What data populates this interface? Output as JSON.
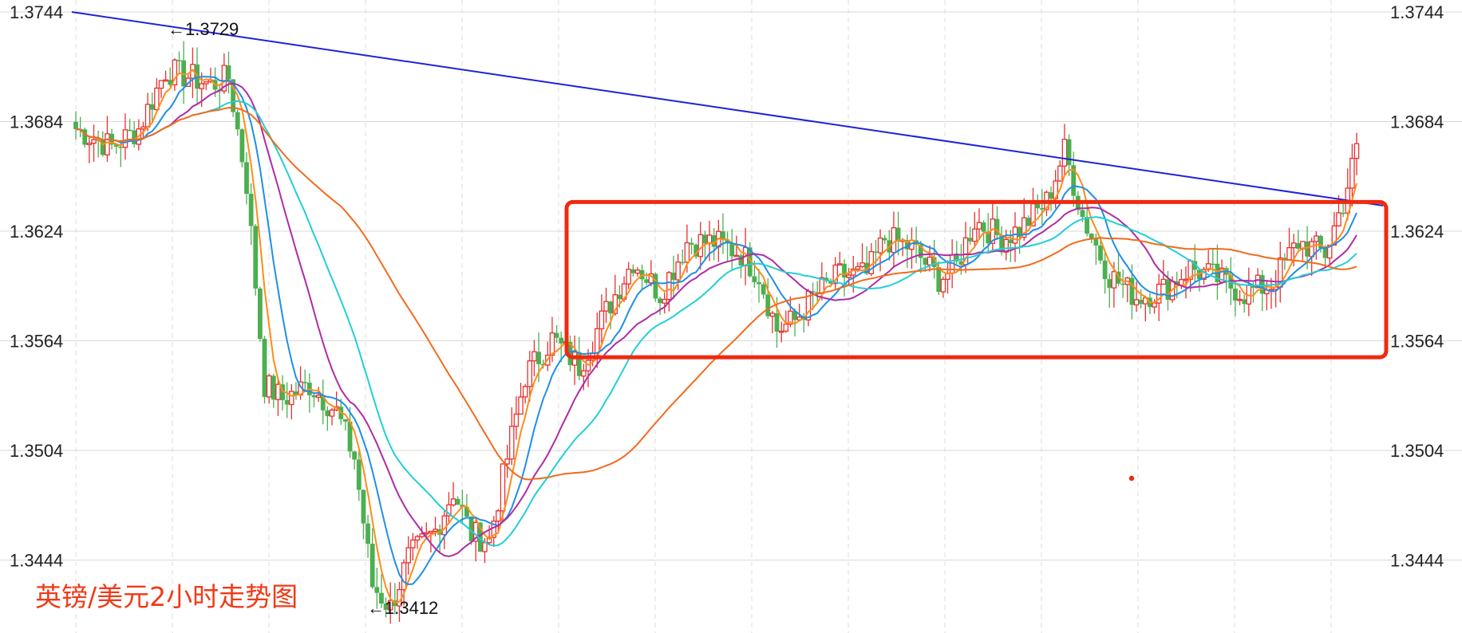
{
  "caption": "英镑/美元2小时走势图",
  "colors": {
    "up": "#e8302f",
    "down": "#4caf50",
    "trendline": "#1e22d8",
    "box": "#f02a10",
    "grid": "#d9d9d9"
  },
  "chart_data": {
    "type": "candlestick",
    "title": "英镑/美元2小时走势图",
    "ylim": [
      1.3405,
      1.3744
    ],
    "y_ticks": [
      "1.3744",
      "1.3684",
      "1.3624",
      "1.3564",
      "1.3504",
      "1.3444"
    ],
    "annotations": [
      {
        "text": "←1.3729",
        "value": 1.3729
      },
      {
        "text": "←1.3412",
        "value": 1.3412
      }
    ],
    "trendline": {
      "from": 1.3744,
      "to": 1.3638
    },
    "range_box": {
      "top": 1.364,
      "bottom": 1.3555
    },
    "waypoints": [
      [
        0,
        1.368
      ],
      [
        8,
        1.367
      ],
      [
        14,
        1.368
      ],
      [
        20,
        1.3712
      ],
      [
        26,
        1.3708
      ],
      [
        30,
        1.3704
      ],
      [
        34,
        1.3708
      ],
      [
        38,
        1.365
      ],
      [
        42,
        1.354
      ],
      [
        46,
        1.3532
      ],
      [
        52,
        1.354
      ],
      [
        58,
        1.3525
      ],
      [
        62,
        1.35
      ],
      [
        66,
        1.343
      ],
      [
        70,
        1.3418
      ],
      [
        74,
        1.3445
      ],
      [
        80,
        1.346
      ],
      [
        84,
        1.3482
      ],
      [
        88,
        1.3458
      ],
      [
        92,
        1.3455
      ],
      [
        96,
        1.35
      ],
      [
        100,
        1.3545
      ],
      [
        106,
        1.3565
      ],
      [
        112,
        1.355
      ],
      [
        118,
        1.358
      ],
      [
        124,
        1.3608
      ],
      [
        130,
        1.359
      ],
      [
        136,
        1.3618
      ],
      [
        142,
        1.3618
      ],
      [
        148,
        1.3612
      ],
      [
        152,
        1.36
      ],
      [
        156,
        1.357
      ],
      [
        160,
        1.3575
      ],
      [
        164,
        1.3588
      ],
      [
        170,
        1.36
      ],
      [
        176,
        1.36
      ],
      [
        180,
        1.362
      ],
      [
        186,
        1.3615
      ],
      [
        192,
        1.3598
      ],
      [
        196,
        1.3605
      ],
      [
        200,
        1.363
      ],
      [
        206,
        1.362
      ],
      [
        210,
        1.3625
      ],
      [
        216,
        1.364
      ],
      [
        220,
        1.3668
      ],
      [
        224,
        1.3632
      ],
      [
        230,
        1.36
      ],
      [
        236,
        1.3588
      ],
      [
        242,
        1.3592
      ],
      [
        248,
        1.3604
      ],
      [
        254,
        1.3598
      ],
      [
        260,
        1.359
      ],
      [
        266,
        1.3595
      ],
      [
        272,
        1.3618
      ],
      [
        278,
        1.3612
      ],
      [
        282,
        1.364
      ],
      [
        285,
        1.3668
      ]
    ],
    "moving_averages": [
      {
        "color": "#ff8c1a",
        "period": 5
      },
      {
        "color": "#1f8fe6",
        "period": 10
      },
      {
        "color": "#b02ca6",
        "period": 20
      },
      {
        "color": "#21cfd6",
        "period": 30
      },
      {
        "color": "#f26b1d",
        "period": 60
      }
    ]
  }
}
